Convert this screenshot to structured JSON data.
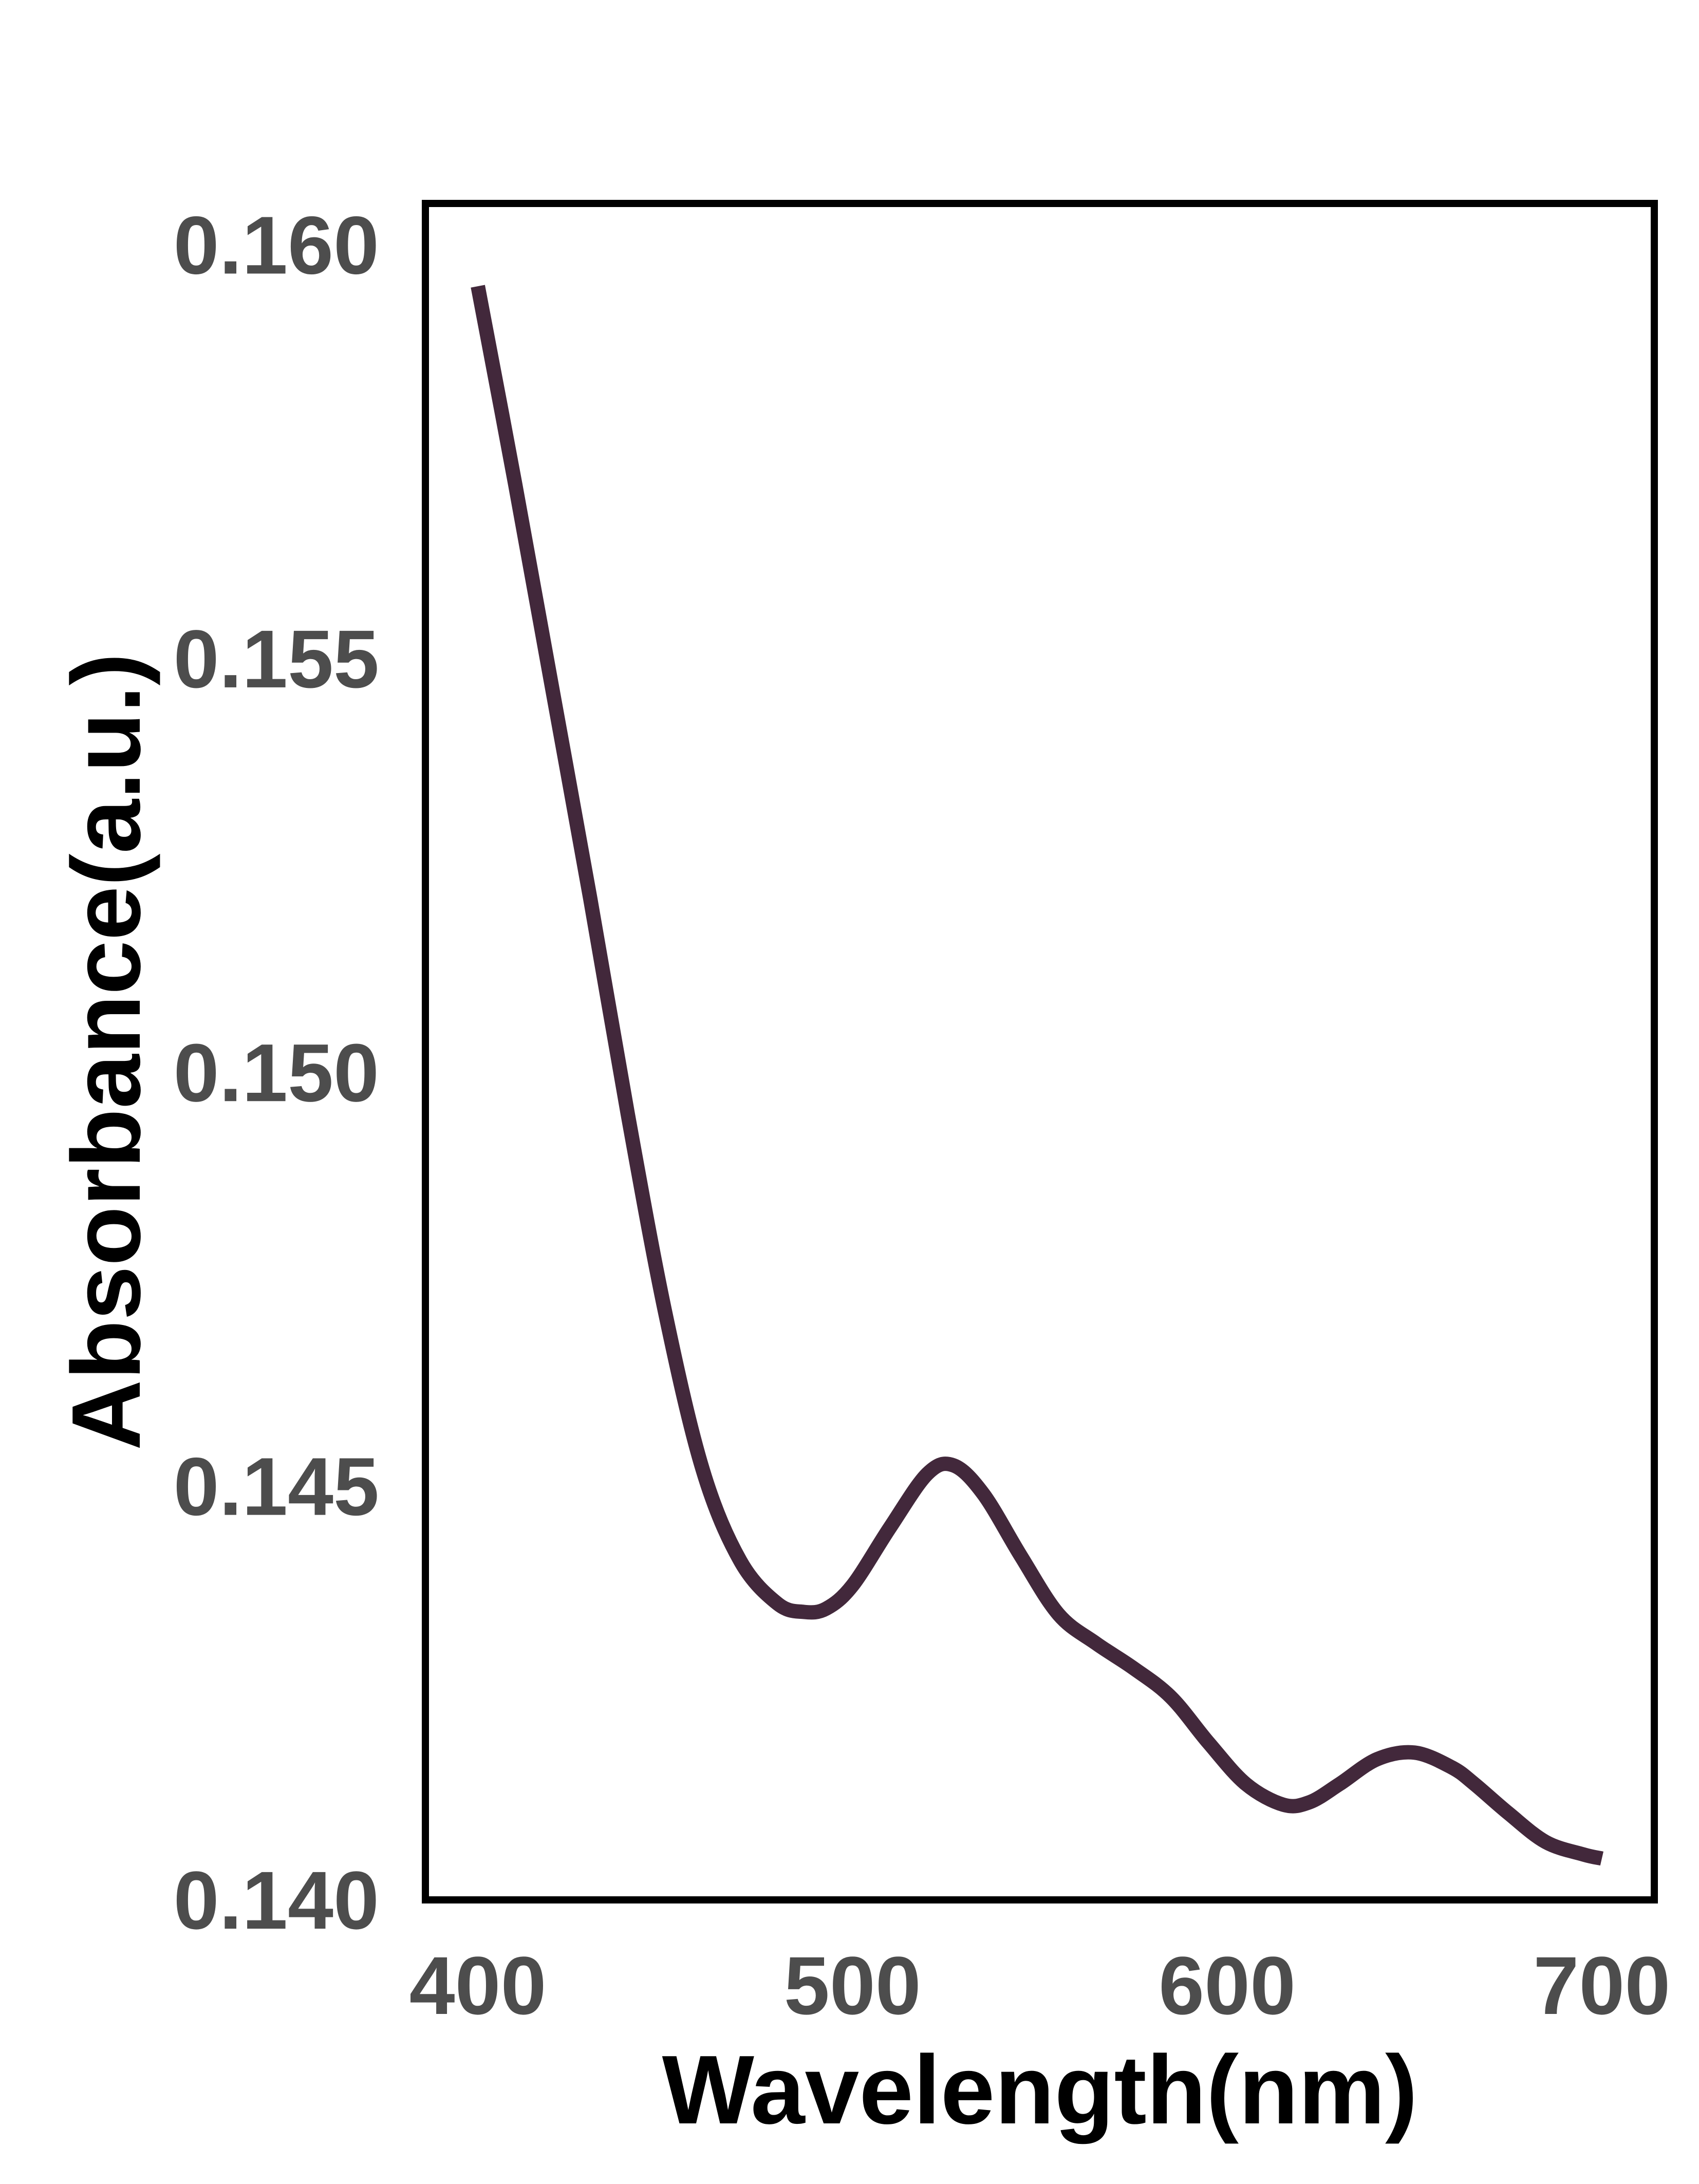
{
  "chart_data": {
    "type": "line",
    "title": "",
    "xlabel": "Wavelength(nm)",
    "ylabel": "Absorbance(a.u.)",
    "xlim": [
      386,
      714
    ],
    "ylim": [
      0.14,
      0.1605
    ],
    "x_ticks": [
      400,
      500,
      600,
      700
    ],
    "x_tick_labels": [
      "400",
      "500",
      "600",
      "700"
    ],
    "y_ticks": [
      0.14,
      0.145,
      0.15,
      0.155,
      0.16
    ],
    "y_tick_labels": [
      "0.140",
      "0.145",
      "0.150",
      "0.155",
      "0.160"
    ],
    "grid": false,
    "legend": "none",
    "colors": {
      "line": "#42283b",
      "frame": "#000000",
      "tick_label": "#4d4d4d",
      "axis_label": "#000000"
    },
    "series": [
      {
        "x": [
          400,
          410,
          420,
          430,
          440,
          450,
          460,
          470,
          480,
          487,
          493,
          500,
          510,
          520,
          527,
          535,
          545,
          555,
          565,
          575,
          585,
          595,
          605,
          615,
          622,
          630,
          640,
          650,
          660,
          666,
          675,
          685,
          695,
          700
        ],
        "y": [
          0.1595,
          0.1571,
          0.1546,
          0.1521,
          0.1495,
          0.1471,
          0.1452,
          0.1441,
          0.14358,
          0.14348,
          0.14352,
          0.1438,
          0.1445,
          0.14515,
          0.14525,
          0.1449,
          0.14415,
          0.14345,
          0.1431,
          0.1428,
          0.14245,
          0.1419,
          0.1414,
          0.14115,
          0.14118,
          0.1414,
          0.1417,
          0.14178,
          0.1416,
          0.1414,
          0.14105,
          0.1407,
          0.14055,
          0.1405
        ]
      }
    ]
  }
}
